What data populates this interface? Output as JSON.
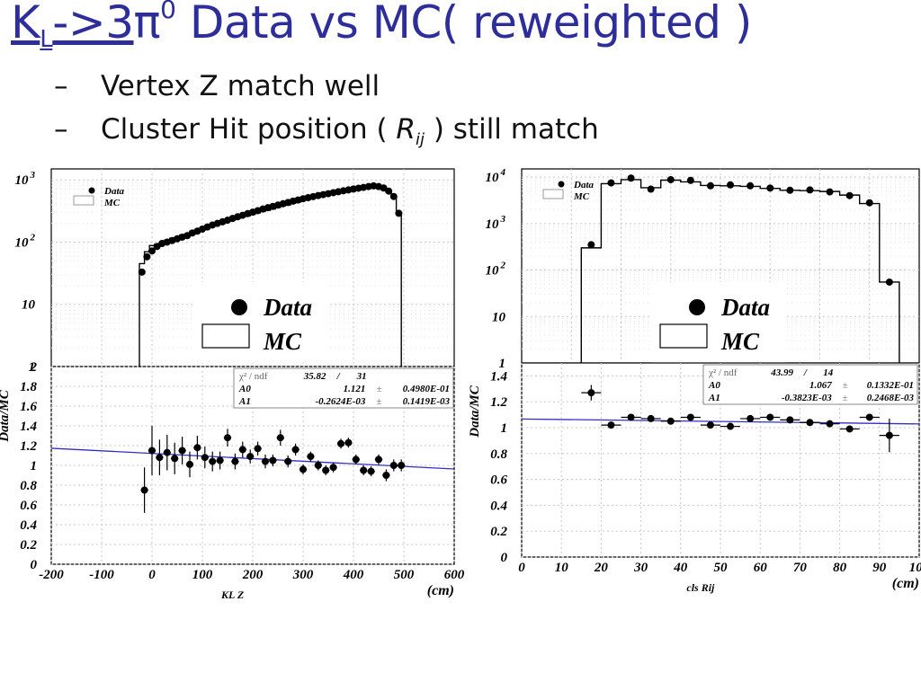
{
  "slide": {
    "title": {
      "k": "K",
      "k_sub": "L",
      "arrow": "->3",
      "pi": "π",
      "pi_sup": "0",
      "rest": " Data vs MC( reweighted )"
    },
    "bullets": [
      {
        "dash": "–",
        "text": "Vertex Z match well"
      },
      {
        "dash": "–",
        "pre": "Cluster Hit position ( ",
        "r": "R",
        "r_sub": "ij",
        "post": " ) still match"
      }
    ]
  },
  "chart_data": [
    {
      "type": "histogram",
      "panel": "left-top",
      "yscale": "log",
      "ylim": [
        1,
        1500
      ],
      "xlim": [
        -200,
        600
      ],
      "yticklabels": [
        "1",
        "10",
        "10 2",
        "10 3"
      ],
      "legend": {
        "placement": "top-left",
        "entries": [
          "Data",
          "MC"
        ]
      },
      "overlay_legend": {
        "entries": [
          "Data",
          "MC"
        ]
      },
      "series": [
        {
          "name": "Data",
          "style": "points",
          "x": [
            -20,
            -10,
            0,
            10,
            20,
            30,
            40,
            50,
            60,
            70,
            80,
            90,
            100,
            110,
            120,
            130,
            140,
            150,
            160,
            170,
            180,
            190,
            200,
            210,
            220,
            230,
            240,
            250,
            260,
            270,
            280,
            290,
            300,
            310,
            320,
            330,
            340,
            350,
            360,
            370,
            380,
            390,
            400,
            410,
            420,
            430,
            440,
            450,
            460,
            470,
            480,
            490
          ],
          "values": [
            33,
            58,
            72,
            85,
            95,
            100,
            106,
            113,
            120,
            127,
            140,
            150,
            162,
            175,
            188,
            200,
            212,
            225,
            240,
            255,
            270,
            287,
            303,
            320,
            340,
            357,
            375,
            393,
            413,
            433,
            455,
            475,
            497,
            518,
            538,
            560,
            580,
            600,
            622,
            645,
            668,
            690,
            713,
            735,
            757,
            780,
            800,
            780,
            740,
            660,
            540,
            290
          ]
        },
        {
          "name": "MC",
          "style": "step",
          "x": [
            -20,
            -10,
            0,
            10,
            20,
            30,
            40,
            50,
            60,
            70,
            80,
            90,
            100,
            110,
            120,
            130,
            140,
            150,
            160,
            170,
            180,
            190,
            200,
            210,
            220,
            230,
            240,
            250,
            260,
            270,
            280,
            290,
            300,
            310,
            320,
            330,
            340,
            350,
            360,
            370,
            380,
            390,
            400,
            410,
            420,
            430,
            440,
            450,
            460,
            470,
            480,
            490
          ],
          "values": [
            45,
            70,
            88,
            92,
            100,
            108,
            115,
            120,
            130,
            135,
            150,
            155,
            165,
            172,
            185,
            192,
            205,
            215,
            225,
            240,
            255,
            265,
            280,
            295,
            310,
            325,
            340,
            360,
            385,
            395,
            420,
            440,
            470,
            490,
            520,
            540,
            560,
            585,
            600,
            625,
            650,
            670,
            700,
            720,
            740,
            765,
            780,
            760,
            720,
            650,
            520,
            280
          ]
        }
      ]
    },
    {
      "type": "scatter",
      "panel": "left-bottom",
      "xlabel": "KL Z",
      "xunit": "(cm)",
      "ylabel": "Data/MC",
      "xlim": [
        -200,
        600
      ],
      "ylim": [
        0,
        2
      ],
      "xticks": [
        -200,
        -100,
        0,
        100,
        200,
        300,
        400,
        500,
        600
      ],
      "yticks": [
        0,
        0.2,
        0.4,
        0.6,
        0.8,
        1,
        1.2,
        1.4,
        1.6,
        1.8,
        2
      ],
      "grid": true,
      "stats": {
        "chi_label": "χ² / ndf",
        "chi": "35.82",
        "sep": "/",
        "ndf": "31",
        "rows": [
          {
            "name": "A0",
            "value": "1.121",
            "pm": "±",
            "err": "0.4980E-01"
          },
          {
            "name": "A1",
            "value": "-0.2624E-03",
            "pm": "±",
            "err": "0.1419E-03"
          }
        ]
      },
      "fit": {
        "a0": 1.121,
        "a1": -0.0002624
      },
      "points": {
        "x": [
          -15,
          0,
          15,
          30,
          45,
          60,
          75,
          90,
          105,
          120,
          135,
          150,
          165,
          180,
          195,
          210,
          225,
          240,
          255,
          270,
          285,
          300,
          315,
          330,
          345,
          360,
          375,
          390,
          405,
          420,
          435,
          450,
          465,
          480,
          495
        ],
        "y": [
          0.75,
          1.15,
          1.08,
          1.13,
          1.07,
          1.15,
          1.01,
          1.18,
          1.08,
          1.04,
          1.05,
          1.28,
          1.04,
          1.16,
          1.09,
          1.17,
          1.04,
          1.05,
          1.28,
          1.04,
          1.16,
          0.96,
          1.09,
          1.0,
          0.95,
          0.98,
          1.22,
          1.23,
          1.06,
          0.95,
          0.94,
          1.06,
          0.9,
          1.0,
          1.0
        ],
        "err": [
          0.23,
          0.25,
          0.18,
          0.18,
          0.16,
          0.14,
          0.13,
          0.12,
          0.11,
          0.1,
          0.09,
          0.09,
          0.08,
          0.08,
          0.07,
          0.07,
          0.07,
          0.06,
          0.08,
          0.06,
          0.06,
          0.05,
          0.05,
          0.05,
          0.05,
          0.05,
          0.05,
          0.05,
          0.05,
          0.05,
          0.05,
          0.05,
          0.06,
          0.06,
          0.06
        ]
      }
    },
    {
      "type": "histogram",
      "panel": "right-top",
      "yscale": "log",
      "ylim": [
        1,
        15000
      ],
      "xlim": [
        0,
        100
      ],
      "yticklabels": [
        "1",
        "10",
        "10 2",
        "10 3",
        "10 4"
      ],
      "legend": {
        "placement": "top-left",
        "entries": [
          "Data",
          "MC"
        ]
      },
      "overlay_legend": {
        "entries": [
          "Data",
          "MC"
        ]
      },
      "series": [
        {
          "name": "Data",
          "style": "points",
          "x": [
            17.5,
            22.5,
            27.5,
            32.5,
            37.5,
            42.5,
            47.5,
            52.5,
            57.5,
            62.5,
            67.5,
            72.5,
            77.5,
            82.5,
            87.5,
            92.5
          ],
          "values": [
            350,
            7500,
            9500,
            5500,
            8800,
            8500,
            6500,
            6800,
            6500,
            5800,
            5200,
            5300,
            4800,
            4000,
            2800,
            55
          ]
        },
        {
          "name": "MC",
          "style": "step",
          "x": [
            17.5,
            22.5,
            27.5,
            32.5,
            37.5,
            42.5,
            47.5,
            52.5,
            57.5,
            62.5,
            67.5,
            72.5,
            77.5,
            82.5,
            87.5,
            92.5
          ],
          "values": [
            300,
            7200,
            8800,
            5900,
            8600,
            7900,
            6600,
            6500,
            6300,
            5700,
            5200,
            5100,
            4900,
            4100,
            2700,
            55
          ]
        }
      ]
    },
    {
      "type": "scatter",
      "panel": "right-bottom",
      "xlabel": "cls Rij",
      "xunit": "(cm)",
      "ylabel": "Data/MC",
      "xlim": [
        0,
        100
      ],
      "ylim": [
        0,
        1.5
      ],
      "xticks": [
        0,
        10,
        20,
        30,
        40,
        50,
        60,
        70,
        80,
        90,
        100
      ],
      "yticks": [
        0,
        0.2,
        0.4,
        0.6,
        0.8,
        1,
        1.2,
        1.4
      ],
      "grid": true,
      "stats": {
        "chi_label": "χ² / ndf",
        "chi": "43.99",
        "sep": "/",
        "ndf": "14",
        "rows": [
          {
            "name": "A0",
            "value": "1.067",
            "pm": "±",
            "err": "0.1332E-01"
          },
          {
            "name": "A1",
            "value": "-0.3823E-03",
            "pm": "±",
            "err": "0.2468E-03"
          }
        ]
      },
      "fit": {
        "a0": 1.067,
        "a1": -0.0003823
      },
      "points": {
        "x": [
          17.5,
          22.5,
          27.5,
          32.5,
          37.5,
          42.5,
          47.5,
          52.5,
          57.5,
          62.5,
          67.5,
          72.5,
          77.5,
          82.5,
          87.5,
          92.5
        ],
        "y": [
          1.27,
          1.02,
          1.08,
          1.07,
          1.05,
          1.08,
          1.02,
          1.01,
          1.07,
          1.08,
          1.06,
          1.04,
          1.03,
          0.99,
          1.08,
          0.94
        ],
        "err": [
          0.06,
          0.02,
          0.015,
          0.02,
          0.015,
          0.015,
          0.015,
          0.015,
          0.015,
          0.015,
          0.015,
          0.015,
          0.015,
          0.02,
          0.025,
          0.13
        ]
      }
    }
  ],
  "colors": {
    "title": "#2e2e9a",
    "fit_line": "#3030c8",
    "grid": "#c8c8c8"
  }
}
